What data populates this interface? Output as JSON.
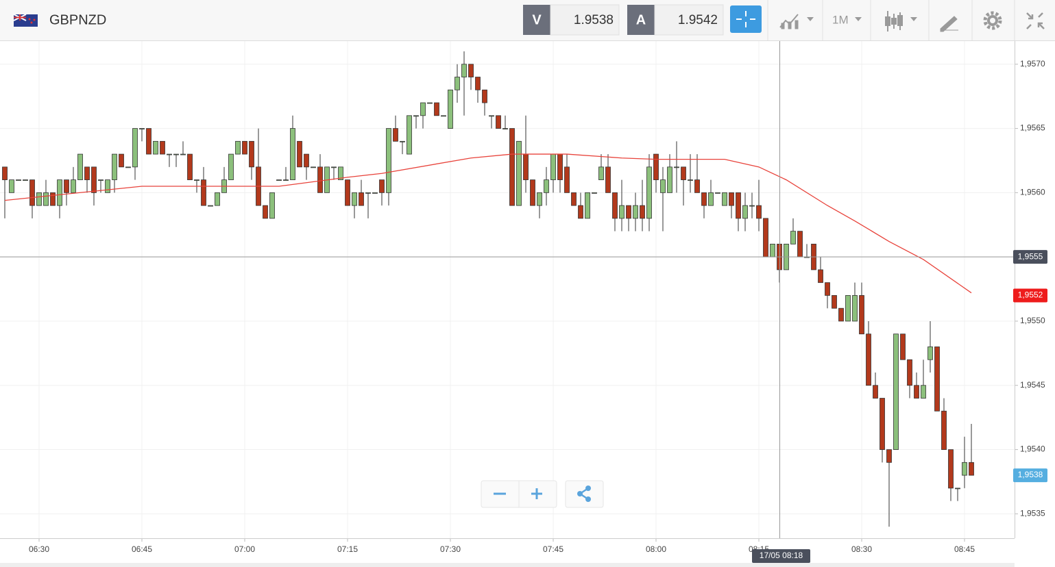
{
  "header": {
    "symbol": "GBPNZD",
    "bid_label": "V",
    "bid": 1.9538,
    "ask_label": "A",
    "ask": 1.9542,
    "timeframe": "1M"
  },
  "chart_data": {
    "type": "candlestick",
    "ylim": [
      1.95331,
      1.95718
    ],
    "yticks": [
      {
        "value": 1.957,
        "label": "1,9570"
      },
      {
        "value": 1.9565,
        "label": "1,9565"
      },
      {
        "value": 1.956,
        "label": "1,9560"
      },
      {
        "value": 1.9555,
        "label": "1,9555"
      },
      {
        "value": 1.955,
        "label": "1,9550"
      },
      {
        "value": 1.9545,
        "label": "1,9545"
      },
      {
        "value": 1.954,
        "label": "1,9540"
      },
      {
        "value": 1.9535,
        "label": "1,9535"
      }
    ],
    "xticks": [
      {
        "value": 5,
        "label": "06:30"
      },
      {
        "value": 20,
        "label": "06:45"
      },
      {
        "value": 35,
        "label": "07:00"
      },
      {
        "value": 50,
        "label": "07:15"
      },
      {
        "value": 65,
        "label": "07:30"
      },
      {
        "value": 80,
        "label": "07:45"
      },
      {
        "value": 95,
        "label": "08:00"
      },
      {
        "value": 110,
        "label": "08:15"
      },
      {
        "value": 125,
        "label": "08:30"
      },
      {
        "value": 140,
        "label": "08:45"
      }
    ],
    "grid": true,
    "up_color": "#8cc07c",
    "down_color": "#b2391c",
    "open": [
      1.9562,
      1.956,
      1.9561,
      1.9561,
      1.9561,
      1.9559,
      1.9559,
      1.956,
      1.9559,
      1.9561,
      1.956,
      1.9561,
      1.9562,
      1.9562,
      1.9561,
      1.956,
      1.9561,
      1.9563,
      1.9562,
      1.9562,
      1.9565,
      1.9565,
      1.9563,
      1.9564,
      1.9563,
      1.9563,
      1.9563,
      1.9563,
      1.9561,
      1.9561,
      1.9559,
      1.9559,
      1.956,
      1.9561,
      1.9563,
      1.9564,
      1.9564,
      1.9562,
      1.9559,
      1.9558,
      1.9561,
      1.9561,
      1.9561,
      1.9564,
      1.9563,
      1.9562,
      1.9562,
      1.956,
      1.9562,
      1.9561,
      1.9561,
      1.9559,
      1.956,
      1.956,
      1.956,
      1.9561,
      1.956,
      1.9565,
      1.9564,
      1.9563,
      1.9566,
      1.9566,
      1.9567,
      1.9567,
      1.9566,
      1.9565,
      1.9568,
      1.9569,
      1.957,
      1.9569,
      1.9568,
      1.9566,
      1.9566,
      1.9565,
      1.9565,
      1.9559,
      1.9563,
      1.9561,
      1.9559,
      1.956,
      1.9561,
      1.9563,
      1.9562,
      1.956,
      1.9559,
      1.9558,
      1.956,
      1.9561,
      1.9562,
      1.956,
      1.9558,
      1.9559,
      1.9558,
      1.9559,
      1.9558,
      1.9563,
      1.956,
      1.956,
      1.9562,
      1.9562,
      1.9561,
      1.9561,
      1.956,
      1.9559,
      1.956,
      1.9559,
      1.956,
      1.956,
      1.9558,
      1.9559,
      1.9559,
      1.9558,
      1.9555,
      1.9556,
      1.9554,
      1.9556,
      1.9557,
      1.9555,
      1.9556,
      1.9554,
      1.9553,
      1.9552,
      1.9551,
      1.955,
      1.955,
      1.9552,
      1.9549,
      1.9545,
      1.9544,
      1.954,
      1.954,
      1.9549,
      1.9547,
      1.9545,
      1.9544,
      1.9547,
      1.9548,
      1.9543,
      1.954,
      1.9537,
      1.9538,
      1.9539
    ],
    "high": [
      1.9562,
      1.9561,
      1.9561,
      1.9561,
      1.9561,
      1.956,
      1.9561,
      1.956,
      1.9561,
      1.9561,
      1.9562,
      1.9563,
      1.9562,
      1.9562,
      1.9561,
      1.9561,
      1.9563,
      1.9563,
      1.9562,
      1.9565,
      1.9565,
      1.9565,
      1.9564,
      1.9564,
      1.9563,
      1.9563,
      1.9564,
      1.9563,
      1.9561,
      1.9562,
      1.9559,
      1.956,
      1.9562,
      1.9563,
      1.9564,
      1.9564,
      1.9564,
      1.9565,
      1.9559,
      1.956,
      1.9561,
      1.9562,
      1.9566,
      1.9564,
      1.9563,
      1.9562,
      1.9563,
      1.9562,
      1.9562,
      1.9562,
      1.9561,
      1.956,
      1.9561,
      1.956,
      1.956,
      1.9561,
      1.9565,
      1.9566,
      1.9564,
      1.9566,
      1.9566,
      1.9567,
      1.9567,
      1.9567,
      1.9566,
      1.9568,
      1.957,
      1.9571,
      1.957,
      1.9569,
      1.9568,
      1.9566,
      1.9566,
      1.9566,
      1.9565,
      1.9564,
      1.9566,
      1.9561,
      1.956,
      1.9562,
      1.9563,
      1.9563,
      1.9563,
      1.956,
      1.956,
      1.956,
      1.956,
      1.9563,
      1.9563,
      1.956,
      1.9561,
      1.9559,
      1.956,
      1.9561,
      1.9563,
      1.9563,
      1.9562,
      1.9563,
      1.9564,
      1.9562,
      1.9563,
      1.9563,
      1.956,
      1.9561,
      1.956,
      1.956,
      1.956,
      1.956,
      1.956,
      1.956,
      1.9561,
      1.9558,
      1.9556,
      1.9556,
      1.9556,
      1.9558,
      1.9557,
      1.9556,
      1.9556,
      1.9555,
      1.9553,
      1.9552,
      1.9551,
      1.9552,
      1.9553,
      1.9553,
      1.955,
      1.9546,
      1.9544,
      1.954,
      1.9549,
      1.9549,
      1.9547,
      1.9546,
      1.9547,
      1.955,
      1.9548,
      1.9544,
      1.954,
      1.9537,
      1.9541,
      1.9542
    ],
    "low": [
      1.9558,
      1.956,
      1.9561,
      1.9561,
      1.9558,
      1.9559,
      1.9559,
      1.9559,
      1.9558,
      1.9559,
      1.956,
      1.9561,
      1.956,
      1.9559,
      1.956,
      1.956,
      1.956,
      1.9562,
      1.9562,
      1.9561,
      1.9564,
      1.9563,
      1.9563,
      1.9563,
      1.9562,
      1.9562,
      1.9563,
      1.9561,
      1.956,
      1.9559,
      1.9559,
      1.9559,
      1.956,
      1.9561,
      1.9563,
      1.9563,
      1.9561,
      1.9559,
      1.9558,
      1.9558,
      1.9561,
      1.9561,
      1.9561,
      1.9562,
      1.9561,
      1.9562,
      1.956,
      1.956,
      1.9561,
      1.9561,
      1.9559,
      1.9558,
      1.9559,
      1.9558,
      1.956,
      1.9559,
      1.9559,
      1.9564,
      1.9563,
      1.9563,
      1.9565,
      1.9565,
      1.9567,
      1.9566,
      1.9566,
      1.9565,
      1.9567,
      1.9566,
      1.9568,
      1.9567,
      1.9566,
      1.9565,
      1.9565,
      1.9565,
      1.9559,
      1.9559,
      1.956,
      1.9559,
      1.9558,
      1.9559,
      1.956,
      1.956,
      1.956,
      1.9559,
      1.9558,
      1.9558,
      1.956,
      1.9561,
      1.956,
      1.9557,
      1.9557,
      1.9557,
      1.9557,
      1.9557,
      1.9557,
      1.956,
      1.9557,
      1.956,
      1.956,
      1.9559,
      1.956,
      1.956,
      1.9558,
      1.9559,
      1.956,
      1.9559,
      1.9558,
      1.9557,
      1.9557,
      1.9558,
      1.9557,
      1.9555,
      1.9555,
      1.9553,
      1.9554,
      1.9556,
      1.9555,
      1.9555,
      1.9554,
      1.9553,
      1.9551,
      1.9551,
      1.955,
      1.955,
      1.955,
      1.9549,
      1.9545,
      1.9544,
      1.9539,
      1.9534,
      1.954,
      1.9547,
      1.9544,
      1.9544,
      1.9544,
      1.9546,
      1.9543,
      1.954,
      1.9536,
      1.9536,
      1.9537,
      1.9538
    ],
    "close": [
      1.9561,
      1.9561,
      1.9561,
      1.9561,
      1.9559,
      1.956,
      1.956,
      1.9559,
      1.9561,
      1.956,
      1.9561,
      1.9563,
      1.9561,
      1.956,
      1.9561,
      1.9561,
      1.9563,
      1.9562,
      1.9562,
      1.9565,
      1.9565,
      1.9563,
      1.9564,
      1.9563,
      1.9563,
      1.9563,
      1.9563,
      1.9561,
      1.9561,
      1.9559,
      1.9559,
      1.956,
      1.9561,
      1.9563,
      1.9564,
      1.9563,
      1.9562,
      1.9559,
      1.9558,
      1.956,
      1.9561,
      1.9561,
      1.9565,
      1.9562,
      1.9562,
      1.9562,
      1.956,
      1.9562,
      1.9562,
      1.9562,
      1.9559,
      1.956,
      1.9559,
      1.956,
      1.956,
      1.956,
      1.9565,
      1.9564,
      1.9564,
      1.9566,
      1.9566,
      1.9567,
      1.9567,
      1.9566,
      1.9566,
      1.9568,
      1.9569,
      1.957,
      1.9569,
      1.9568,
      1.9567,
      1.9566,
      1.9565,
      1.9565,
      1.9559,
      1.9564,
      1.9561,
      1.9559,
      1.956,
      1.9561,
      1.9563,
      1.9561,
      1.956,
      1.9559,
      1.9558,
      1.956,
      1.956,
      1.9562,
      1.956,
      1.9558,
      1.9559,
      1.9558,
      1.9559,
      1.9558,
      1.9562,
      1.9561,
      1.9561,
      1.9562,
      1.9562,
      1.9561,
      1.9561,
      1.956,
      1.9559,
      1.956,
      1.956,
      1.956,
      1.9559,
      1.9558,
      1.9559,
      1.9559,
      1.9558,
      1.9555,
      1.9556,
      1.9554,
      1.9556,
      1.9557,
      1.9555,
      1.9555,
      1.9554,
      1.9553,
      1.9552,
      1.9551,
      1.955,
      1.9552,
      1.9552,
      1.9549,
      1.9545,
      1.9544,
      1.954,
      1.9539,
      1.9549,
      1.9547,
      1.9545,
      1.9544,
      1.9545,
      1.9548,
      1.9543,
      1.954,
      1.9537,
      1.9537,
      1.9539,
      1.9538
    ],
    "moving_average": {
      "color": "#e8423a",
      "x": [
        0,
        20,
        40,
        50,
        55,
        68,
        74,
        82,
        90,
        95,
        105,
        110,
        114,
        120,
        124,
        129,
        134,
        141
      ],
      "values": [
        1.95594,
        1.95605,
        1.95605,
        1.95612,
        1.95615,
        1.95627,
        1.9563,
        1.9563,
        1.95627,
        1.95626,
        1.95626,
        1.9562,
        1.9561,
        1.9559,
        1.95578,
        1.95562,
        1.95548,
        1.95522
      ]
    },
    "crosshair": {
      "time_label": "17/05 08:18",
      "price": {
        "value": 1.9555,
        "label": "1,9555"
      }
    },
    "ma_tag": {
      "value": 1.9552,
      "label": "1,9552"
    },
    "last_tag": {
      "value": 1.9538,
      "label": "1,9538"
    }
  }
}
